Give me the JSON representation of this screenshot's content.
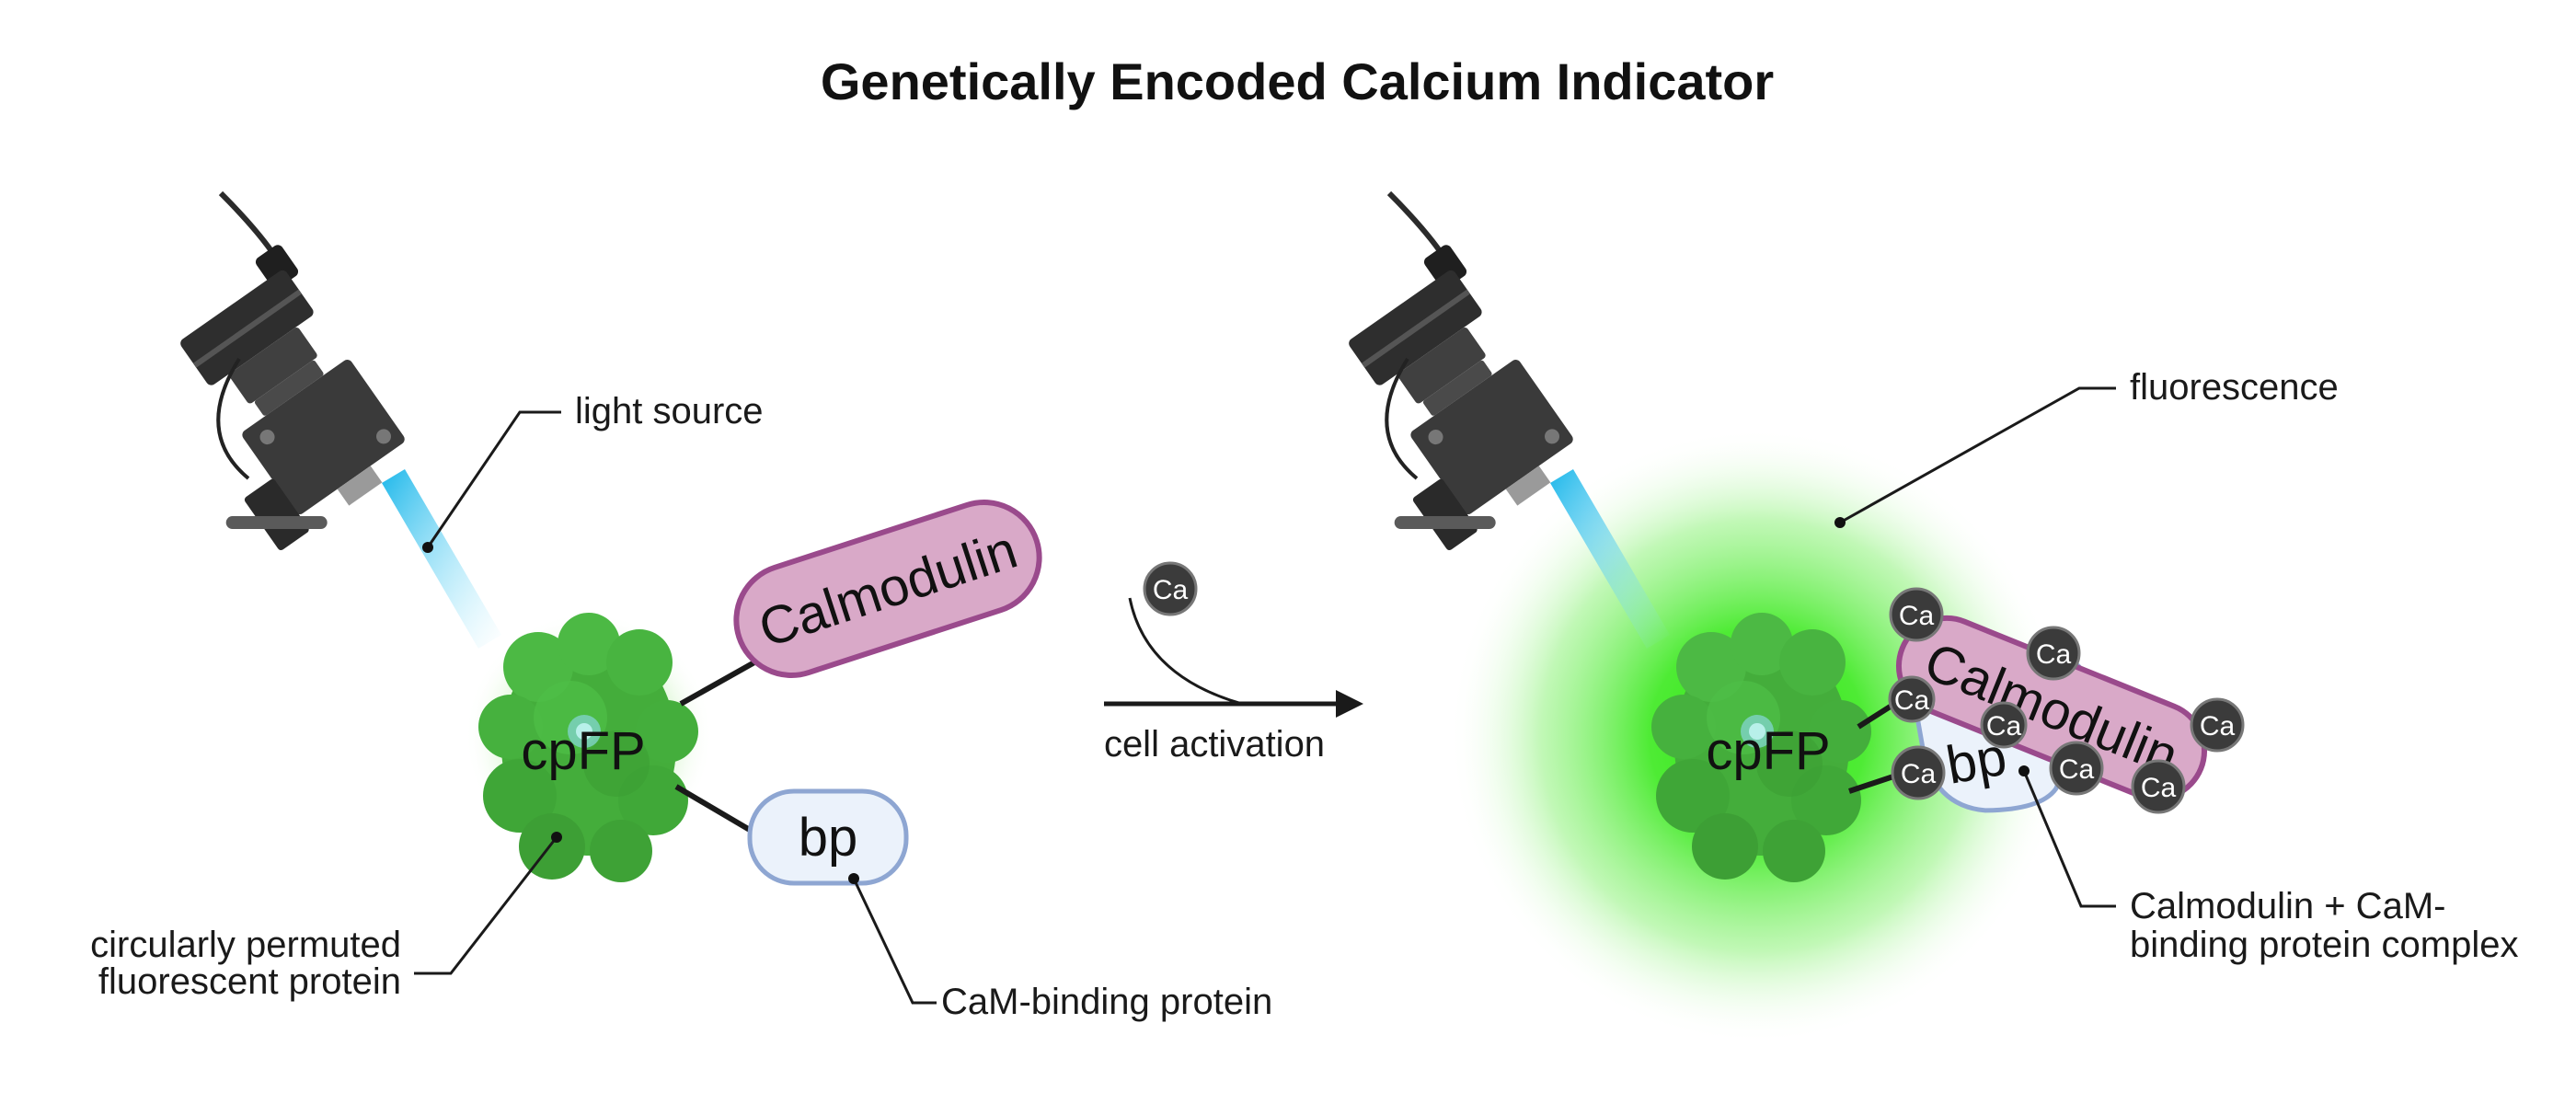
{
  "title": "Genetically Encoded Calcium Indicator",
  "left_panel": {
    "light_source_label": "light source",
    "cpfp_text": "cpFP",
    "calmodulin_text": "Calmodulin",
    "bp_text": "bp",
    "cpfp_label_line1": "circularly permuted",
    "cpfp_label_line2": "fluorescent protein",
    "bp_label": "CaM-binding protein"
  },
  "transition": {
    "ion_text": "Ca",
    "label": "cell activation"
  },
  "right_panel": {
    "fluorescence_label": "fluorescence",
    "cpfp_text": "cpFP",
    "calmodulin_text": "Calmodulin",
    "bp_text": "bp",
    "ion_text": "Ca",
    "complex_label_line1": "Calmodulin + CaM-",
    "complex_label_line2": "binding protein complex"
  },
  "colors": {
    "protein_green": "#3fae3a",
    "fluorescence_green": "#39e61e",
    "calmodulin_fill": "#d9a9c8",
    "calmodulin_stroke": "#9a4a8c",
    "bp_fill": "#ebf2fb",
    "bp_stroke": "#8ea6d2",
    "light_beam": "#2ec9f0",
    "camera_body": "#3a3a3a",
    "ion_fill": "#3b3b3b"
  },
  "icons": [
    "camera-icon",
    "protein-icon",
    "calcium-ion-icon",
    "arrow-icon"
  ]
}
